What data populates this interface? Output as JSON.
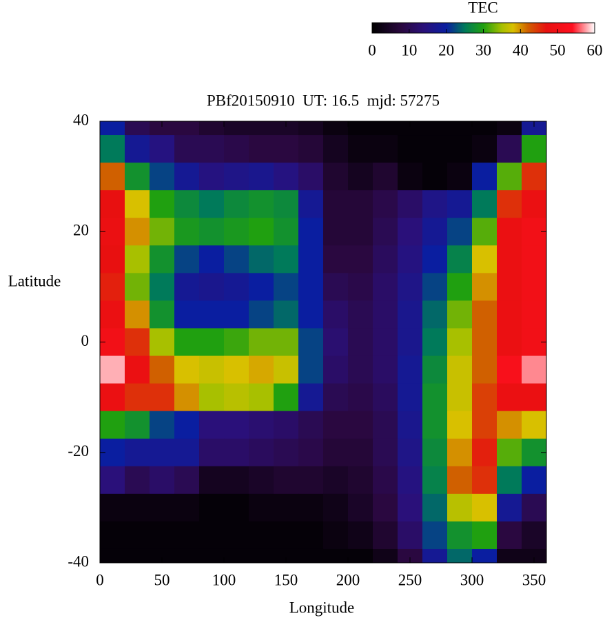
{
  "chart_data": {
    "type": "heatmap",
    "title": "PBf20150910  UT: 16.5  mjd: 57275",
    "x_label": "Longitude",
    "y_label": "Latitude",
    "colorbar_label": "TEC",
    "x": [
      10,
      30,
      50,
      70,
      90,
      110,
      130,
      150,
      170,
      190,
      210,
      230,
      250,
      270,
      290,
      310,
      330,
      350
    ],
    "y": [
      40,
      35,
      30,
      25,
      20,
      15,
      10,
      5,
      0,
      -5,
      -10,
      -15,
      -20,
      -25,
      -30,
      -35,
      -40
    ],
    "z": [
      [
        20,
        10,
        8,
        8,
        6,
        5,
        5,
        5,
        4,
        2,
        1,
        1,
        1,
        1,
        1,
        1,
        2,
        18
      ],
      [
        25,
        18,
        15,
        10,
        10,
        9,
        8,
        8,
        7,
        4,
        2,
        2,
        1,
        1,
        1,
        2,
        10,
        30
      ],
      [
        42,
        28,
        22,
        18,
        15,
        16,
        17,
        15,
        12,
        6,
        4,
        6,
        2,
        1,
        2,
        20,
        32,
        45
      ],
      [
        47,
        38,
        30,
        27,
        25,
        27,
        28,
        27,
        18,
        7,
        7,
        9,
        12,
        16,
        18,
        25,
        45,
        48
      ],
      [
        48,
        40,
        33,
        29,
        28,
        29,
        30,
        28,
        20,
        7,
        7,
        10,
        14,
        18,
        22,
        32,
        48,
        50
      ],
      [
        47,
        35,
        28,
        22,
        20,
        22,
        24,
        25,
        20,
        8,
        8,
        11,
        15,
        20,
        26,
        38,
        48,
        50
      ],
      [
        46,
        33,
        25,
        18,
        17,
        18,
        20,
        22,
        20,
        10,
        9,
        12,
        16,
        22,
        30,
        40,
        48,
        50
      ],
      [
        48,
        40,
        28,
        20,
        20,
        20,
        22,
        24,
        20,
        12,
        10,
        12,
        17,
        24,
        33,
        42,
        48,
        50
      ],
      [
        50,
        45,
        35,
        30,
        30,
        31,
        33,
        33,
        22,
        13,
        10,
        12,
        17,
        25,
        35,
        42,
        48,
        50
      ],
      [
        58,
        48,
        42,
        38,
        37,
        38,
        39,
        37,
        22,
        12,
        10,
        12,
        18,
        27,
        37,
        42,
        52,
        57
      ],
      [
        48,
        45,
        45,
        40,
        35,
        36,
        35,
        30,
        18,
        10,
        9,
        11,
        18,
        28,
        37,
        44,
        48,
        48
      ],
      [
        30,
        28,
        22,
        20,
        14,
        14,
        13,
        12,
        10,
        8,
        8,
        10,
        17,
        28,
        38,
        44,
        40,
        38
      ],
      [
        20,
        18,
        18,
        18,
        12,
        12,
        11,
        10,
        9,
        7,
        7,
        10,
        16,
        27,
        40,
        46,
        32,
        28
      ],
      [
        14,
        10,
        12,
        10,
        4,
        4,
        5,
        6,
        6,
        5,
        6,
        9,
        15,
        26,
        42,
        45,
        25,
        20
      ],
      [
        2,
        2,
        2,
        2,
        1,
        1,
        2,
        2,
        2,
        3,
        5,
        8,
        14,
        24,
        36,
        38,
        18,
        10
      ],
      [
        1,
        1,
        1,
        1,
        1,
        1,
        1,
        1,
        1,
        2,
        3,
        6,
        12,
        22,
        28,
        30,
        8,
        5
      ],
      [
        1,
        1,
        1,
        1,
        1,
        1,
        1,
        1,
        1,
        1,
        1,
        3,
        8,
        18,
        24,
        20,
        3,
        3
      ]
    ],
    "xlim": [
      0,
      360
    ],
    "xticks": [
      0,
      50,
      100,
      150,
      200,
      250,
      300,
      350
    ],
    "ylim": [
      -40,
      40
    ],
    "yticks": [
      -40,
      -20,
      0,
      20,
      40
    ],
    "zlim": [
      0,
      60
    ],
    "zticks": [
      0,
      10,
      20,
      30,
      40,
      50,
      60
    ],
    "palette": [
      {
        "value": 0,
        "color": "#000000"
      },
      {
        "value": 8,
        "color": "#2a0840"
      },
      {
        "value": 14,
        "color": "#2a107a"
      },
      {
        "value": 20,
        "color": "#0a1ea0"
      },
      {
        "value": 25,
        "color": "#007a5a"
      },
      {
        "value": 30,
        "color": "#20a010"
      },
      {
        "value": 35,
        "color": "#a8c000"
      },
      {
        "value": 38,
        "color": "#d8c000"
      },
      {
        "value": 42,
        "color": "#d06000"
      },
      {
        "value": 47,
        "color": "#e81010"
      },
      {
        "value": 54,
        "color": "#ff1020"
      },
      {
        "value": 60,
        "color": "#ffffff"
      }
    ]
  }
}
